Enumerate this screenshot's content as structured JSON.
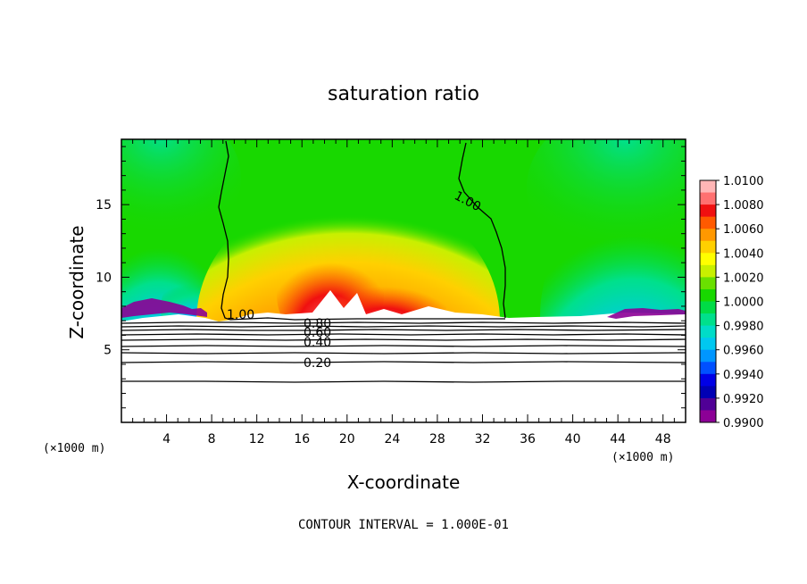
{
  "chart_data": {
    "type": "heatmap",
    "title": "saturation ratio",
    "xlabel": "X-coordinate",
    "ylabel": "Z-coordinate",
    "x_unit": "(×1000 m)",
    "y_unit": "(×1000 m)",
    "xlim": [
      0,
      50
    ],
    "ylim": [
      0,
      19.5
    ],
    "x_ticks": [
      "4",
      "8",
      "12",
      "16",
      "20",
      "24",
      "28",
      "32",
      "36",
      "40",
      "44",
      "48"
    ],
    "y_ticks": [
      "5",
      "10",
      "15"
    ],
    "colorbar": {
      "levels": [
        "1.0100",
        "1.0080",
        "1.0060",
        "1.0040",
        "1.0020",
        "1.0000",
        "0.9980",
        "0.9960",
        "0.9940",
        "0.9920",
        "0.9900"
      ],
      "colors": [
        "#ffb6b6",
        "#ff7070",
        "#f01010",
        "#ff5a00",
        "#ff9800",
        "#ffd000",
        "#ffff00",
        "#c8f000",
        "#6ae000",
        "#18d800",
        "#00dc46",
        "#00e08c",
        "#00dcc8",
        "#00c8f0",
        "#0096ff",
        "#0050ff",
        "#0000e6",
        "#0000b4",
        "#500096",
        "#8c0096"
      ]
    },
    "contour_labels": [
      "1.00",
      "1.00",
      "0.80",
      "0.60",
      "0.40",
      "0.20"
    ],
    "contour_interval_text": "CONTOUR INTERVAL = 1.000E-01"
  }
}
